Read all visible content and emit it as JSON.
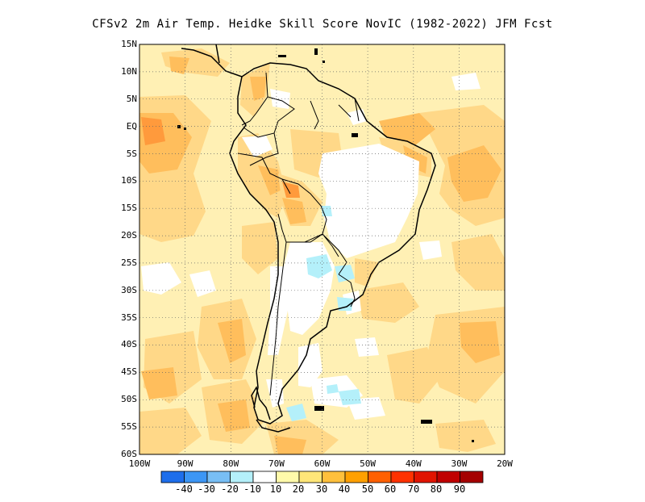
{
  "title": "CFSv2  2m Air Temp. Heidke Skill Score NovIC (1982-2022) JFM Fcst",
  "lat_labels": [
    "15N",
    "10N",
    "5N",
    "EQ",
    "5S",
    "10S",
    "15S",
    "20S",
    "25S",
    "30S",
    "35S",
    "40S",
    "45S",
    "50S",
    "55S",
    "60S"
  ],
  "lon_labels": [
    "100W",
    "90W",
    "80W",
    "70W",
    "60W",
    "50W",
    "40W",
    "30W",
    "20W"
  ],
  "colorbar": {
    "colors": [
      "#1e6eeb",
      "#3c96f5",
      "#78bef5",
      "#b4f0fa",
      "#ffffff",
      "#fffaaa",
      "#ffe678",
      "#ffc03c",
      "#ffa000",
      "#ff6000",
      "#ff3200",
      "#e11400",
      "#c00000",
      "#a50000"
    ],
    "labels": [
      "-40",
      "-30",
      "-20",
      "-10",
      "10",
      "20",
      "30",
      "40",
      "50",
      "60",
      "70",
      "80",
      "90"
    ]
  },
  "map": {
    "lon_range": [
      -100,
      -20
    ],
    "lat_range": [
      -60,
      15
    ],
    "grid": "dotted",
    "palette": {
      "ocean_light": "#fff0b4",
      "ocean_mid": "#ffd888",
      "ocean_strong": "#ffbe5c",
      "hot": "#ff9a3c",
      "land_white": "#ffffff",
      "negative": "#b4f0fa"
    }
  }
}
